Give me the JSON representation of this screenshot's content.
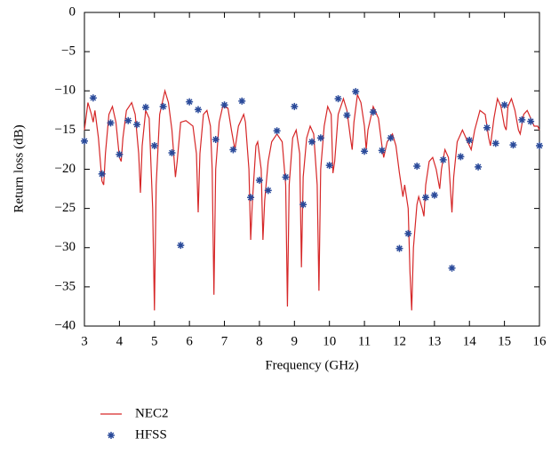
{
  "chart_data": {
    "type": "line",
    "xlabel": "Frequency (GHz)",
    "ylabel": "Return loss (dB)",
    "xlim": [
      3,
      16
    ],
    "xticks": [
      3,
      4,
      5,
      6,
      7,
      8,
      9,
      10,
      11,
      12,
      13,
      14,
      15,
      16
    ],
    "ylim": [
      -40,
      0
    ],
    "yticks": [
      {
        "value": 0,
        "label": "0"
      },
      {
        "value": -5,
        "label": "−5"
      },
      {
        "value": -10,
        "label": "−10"
      },
      {
        "value": -15,
        "label": "−15"
      },
      {
        "value": -20,
        "label": "−20"
      },
      {
        "value": -25,
        "label": "−25"
      },
      {
        "value": -30,
        "label": "−30"
      },
      {
        "value": -35,
        "label": "−35"
      },
      {
        "value": -40,
        "label": "−40"
      }
    ],
    "grid": false,
    "series": [
      {
        "name": "NEC2",
        "color": "#d62728",
        "mode": "line",
        "x": [
          3.0,
          3.1,
          3.2,
          3.25,
          3.3,
          3.4,
          3.5,
          3.55,
          3.6,
          3.7,
          3.8,
          3.9,
          4.0,
          4.05,
          4.1,
          4.2,
          4.35,
          4.45,
          4.55,
          4.6,
          4.65,
          4.75,
          4.85,
          4.95,
          5.0,
          5.05,
          5.15,
          5.3,
          5.4,
          5.5,
          5.6,
          5.65,
          5.75,
          5.9,
          6.1,
          6.2,
          6.25,
          6.3,
          6.4,
          6.5,
          6.6,
          6.65,
          6.7,
          6.75,
          6.85,
          6.95,
          7.1,
          7.2,
          7.3,
          7.4,
          7.55,
          7.6,
          7.7,
          7.75,
          7.8,
          7.9,
          7.95,
          8.05,
          8.1,
          8.15,
          8.25,
          8.35,
          8.5,
          8.65,
          8.75,
          8.8,
          8.85,
          8.95,
          9.05,
          9.15,
          9.2,
          9.25,
          9.35,
          9.45,
          9.55,
          9.65,
          9.7,
          9.75,
          9.85,
          9.95,
          10.05,
          10.1,
          10.15,
          10.25,
          10.4,
          10.5,
          10.6,
          10.65,
          10.7,
          10.8,
          10.9,
          11.0,
          11.05,
          11.1,
          11.25,
          11.4,
          11.5,
          11.55,
          11.65,
          11.8,
          11.9,
          12.0,
          12.1,
          12.15,
          12.25,
          12.3,
          12.35,
          12.4,
          12.5,
          12.55,
          12.65,
          12.7,
          12.75,
          12.85,
          12.95,
          13.05,
          13.15,
          13.2,
          13.3,
          13.4,
          13.45,
          13.5,
          13.55,
          13.65,
          13.8,
          13.95,
          14.05,
          14.15,
          14.3,
          14.45,
          14.55,
          14.6,
          14.7,
          14.8,
          14.9,
          15.0,
          15.05,
          15.1,
          15.2,
          15.3,
          15.4,
          15.45,
          15.55,
          15.65,
          15.75,
          15.85,
          15.95,
          16.0
        ],
        "values": [
          -15,
          -11.5,
          -13,
          -14,
          -12.5,
          -16,
          -21.5,
          -22,
          -18,
          -13,
          -12,
          -14,
          -18.5,
          -19,
          -16,
          -12.5,
          -11.5,
          -13,
          -18,
          -23,
          -17,
          -12.5,
          -13.5,
          -25,
          -38,
          -22,
          -13,
          -10,
          -11.5,
          -15,
          -21,
          -19,
          -14,
          -13.8,
          -14.5,
          -18,
          -25.5,
          -18,
          -13,
          -12.5,
          -14.5,
          -20,
          -36,
          -20,
          -14,
          -12,
          -12.2,
          -15,
          -17.5,
          -14.5,
          -13,
          -14,
          -20,
          -29,
          -24,
          -17,
          -16.5,
          -20,
          -29,
          -24,
          -19,
          -16.5,
          -15.5,
          -16.5,
          -22,
          -37.5,
          -22,
          -16,
          -15,
          -18,
          -32.5,
          -21,
          -16,
          -14.5,
          -15.5,
          -22,
          -35.5,
          -20,
          -14.5,
          -12,
          -13,
          -20.5,
          -19,
          -13,
          -11,
          -12.5,
          -16,
          -17.5,
          -14,
          -10.5,
          -11.5,
          -14.5,
          -17.5,
          -15,
          -12,
          -13.5,
          -17,
          -18.5,
          -16.5,
          -15.5,
          -17,
          -20.5,
          -23.5,
          -22,
          -25,
          -33,
          -38,
          -30,
          -24.5,
          -23.5,
          -25,
          -26,
          -22,
          -19,
          -18.5,
          -20,
          -22.5,
          -20,
          -17.5,
          -18.5,
          -22,
          -25.5,
          -21,
          -16.5,
          -15,
          -16.5,
          -17.5,
          -15,
          -12.5,
          -13,
          -16,
          -17,
          -13.5,
          -11,
          -12,
          -14.5,
          -15,
          -12,
          -11,
          -12.5,
          -15,
          -15.5,
          -13,
          -12.5,
          -13.5,
          -14.5,
          -14.5,
          -15
        ]
      },
      {
        "name": "HFSS",
        "color": "#2a4a9a",
        "mode": "marker",
        "x": [
          3.0,
          3.25,
          3.5,
          3.75,
          4.0,
          4.25,
          4.5,
          4.75,
          5.0,
          5.25,
          5.5,
          5.75,
          6.0,
          6.25,
          6.75,
          7.0,
          7.25,
          7.5,
          7.75,
          8.0,
          8.25,
          8.5,
          8.75,
          9.0,
          9.25,
          9.5,
          9.75,
          10.0,
          10.25,
          10.5,
          10.75,
          11.0,
          11.25,
          11.5,
          11.75,
          12.0,
          12.25,
          12.5,
          12.75,
          13.0,
          13.25,
          13.5,
          13.75,
          14.0,
          14.25,
          14.5,
          14.75,
          15.0,
          15.25,
          15.5,
          15.75,
          16.0
        ],
        "values": [
          -16.4,
          -10.9,
          -20.6,
          -14.1,
          -18.1,
          -13.8,
          -14.3,
          -12.1,
          -17.0,
          -12.0,
          -17.9,
          -29.7,
          -11.4,
          -12.4,
          -16.2,
          -11.8,
          -17.5,
          -11.3,
          -23.6,
          -21.4,
          -22.7,
          -15.1,
          -21.0,
          -12.0,
          -24.5,
          -16.5,
          -16.0,
          -19.5,
          -11.0,
          -13.1,
          -10.1,
          -17.7,
          -12.7,
          -17.6,
          -16.0,
          -30.1,
          -28.2,
          -19.6,
          -23.6,
          -23.3,
          -18.8,
          -32.6,
          -18.4,
          -16.3,
          -19.7,
          -14.7,
          -16.7,
          -11.8,
          -16.9,
          -13.7,
          -13.9,
          -17.0
        ]
      }
    ]
  }
}
